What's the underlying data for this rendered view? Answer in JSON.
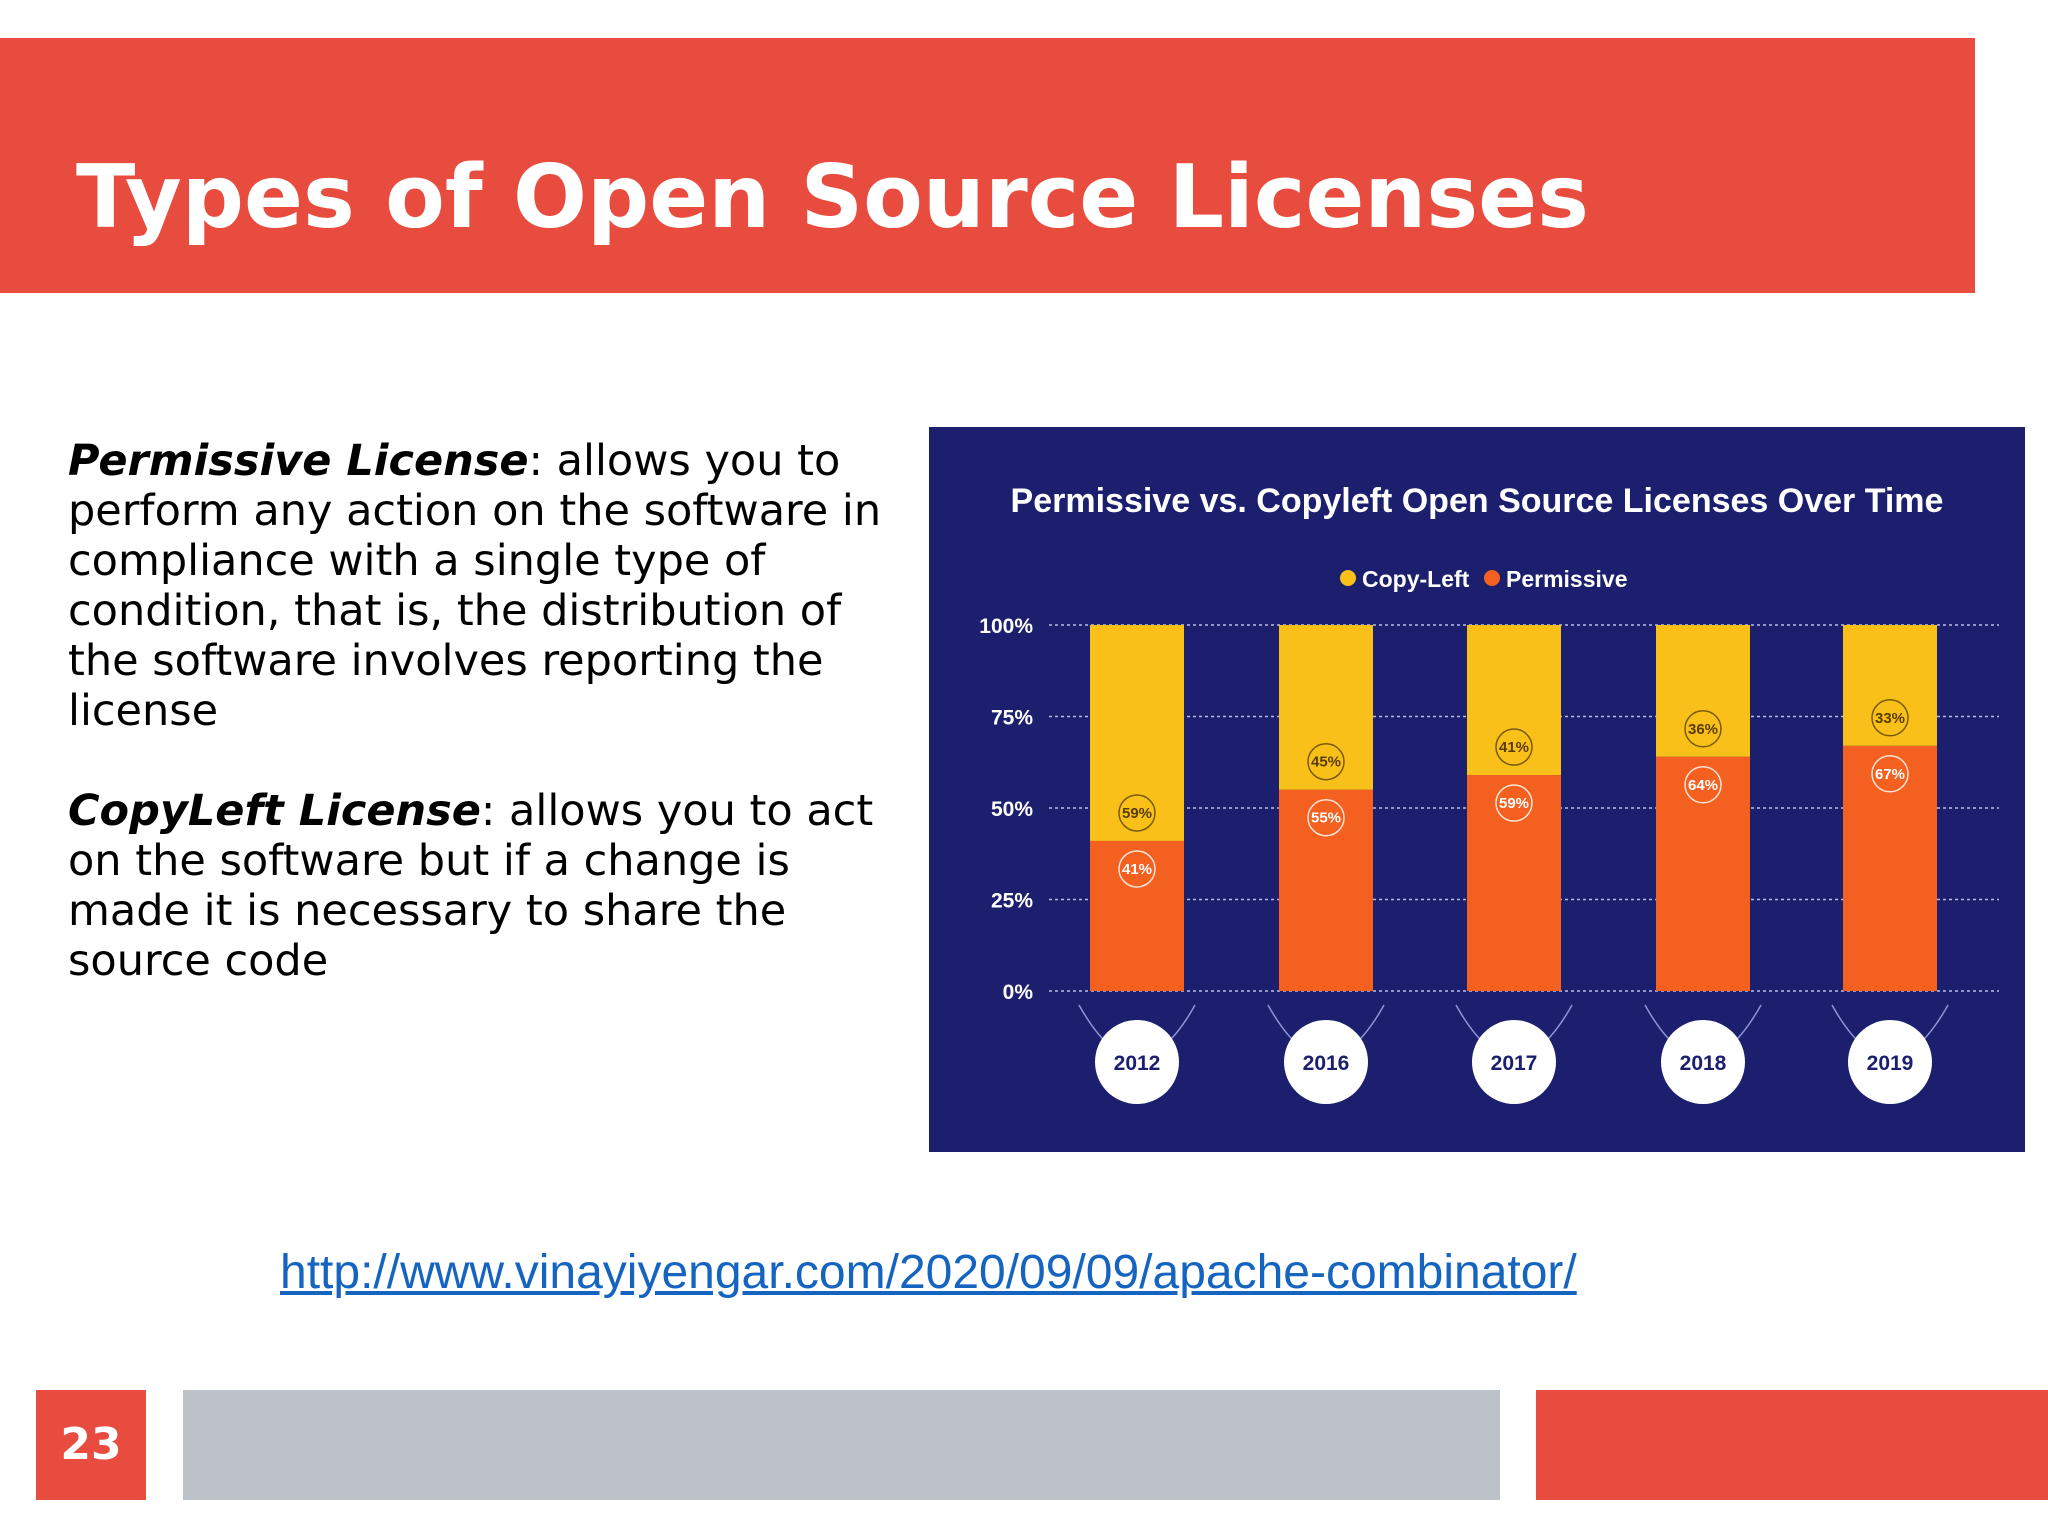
{
  "slide": {
    "title": "Types of Open Source Licenses",
    "page_number": "23",
    "link_text": "http://www.vinayiyengar.com/2020/09/09/apache-combinator/"
  },
  "body": {
    "permissive_term": "Permissive License",
    "permissive_desc": ": allows you to perform any action on the software in compliance with a single type of condition, that is, the distribution of the software involves reporting the license",
    "copyleft_term": "CopyLeft License",
    "copyleft_desc": ": allows you to act on the software but if a change is made it is necessary to share the source code"
  },
  "colors": {
    "accent_red": "#e74c3f",
    "footer_gray": "#bdc1c8",
    "chart_bg": "#1b1f6d",
    "copyleft_yellow": "#f9c01a",
    "permissive_orange": "#f4601f"
  },
  "chart_data": {
    "type": "bar",
    "stacked": true,
    "title": "Permissive vs. Copyleft Open Source Licenses Over Time",
    "categories": [
      "2012",
      "2016",
      "2017",
      "2018",
      "2019"
    ],
    "series": [
      {
        "name": "Permissive",
        "values": [
          41,
          55,
          59,
          64,
          67
        ],
        "labels": [
          "41%",
          "55%",
          "59%",
          "64%",
          "67%"
        ],
        "color": "#f4601f"
      },
      {
        "name": "Copy-Left",
        "values": [
          59,
          45,
          41,
          36,
          33
        ],
        "labels": [
          "59%",
          "45%",
          "41%",
          "36%",
          "33%"
        ],
        "color": "#f9c01a"
      }
    ],
    "legend": [
      "Copy-Left",
      "Permissive"
    ],
    "legend_position": "top-center",
    "yticks": [
      "0%",
      "25%",
      "50%",
      "75%",
      "100%"
    ],
    "ylim": [
      0,
      100
    ],
    "grid": true
  }
}
